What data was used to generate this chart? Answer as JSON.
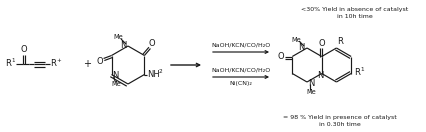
{
  "bg_color": "#ffffff",
  "fig_width": 4.26,
  "fig_height": 1.32,
  "dpi": 100,
  "lc": "#1a1a1a",
  "fs": 6.0,
  "fs_s": 4.5,
  "top_note_line1": "<30% Yield in absence of catalyst",
  "top_note_line2": "in 10h time",
  "bottom_note_line1": "= 98 % Yield in presence of catalyst",
  "bottom_note_line2": "in 0.30h time",
  "arrow1_label": "NaOH/KCN/CO/H₂O",
  "arrow2_label1": "NaOH/KCN/CO/H₂O",
  "arrow2_label2": "Ni(CN)₂"
}
